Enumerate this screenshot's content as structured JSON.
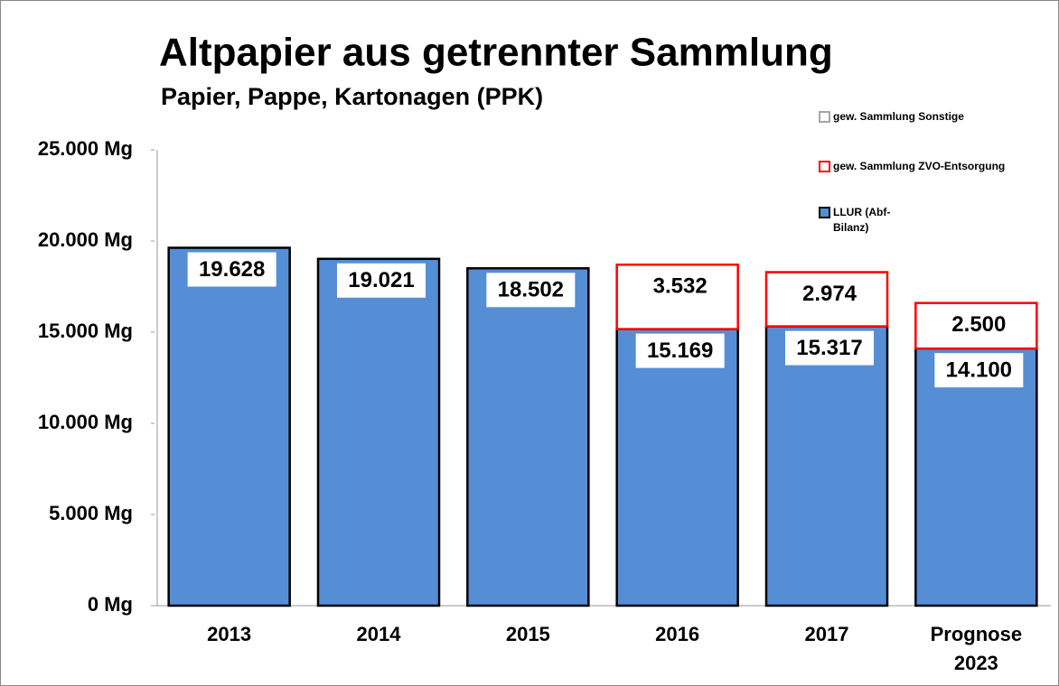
{
  "chart_data": {
    "type": "bar",
    "stacked": true,
    "title": "Altpapier aus getrennter Sammlung",
    "subtitle": "Papier, Pappe, Kartonagen (PPK)",
    "categories": [
      "2013",
      "2014",
      "2015",
      "2016",
      "2017",
      "Prognose 2023"
    ],
    "series": [
      {
        "name": "gew. Sammlung Sonstige",
        "color": "#ffffff",
        "edgecolor": "#a6a6a6",
        "values": [
          null,
          null,
          null,
          null,
          null,
          null
        ]
      },
      {
        "name": "gew. Sammlung ZVO-Entsorgung",
        "color": "#ffffff",
        "edgecolor": "#ff0000",
        "values": [
          null,
          null,
          null,
          3532,
          2974,
          2500
        ],
        "value_labels": [
          null,
          null,
          null,
          "3.532",
          "2.974",
          "2.500"
        ]
      },
      {
        "name": "LLUR (Abf-Bilanz)",
        "color": "#558ed5",
        "edgecolor": "#000000",
        "values": [
          19628,
          19021,
          18502,
          15169,
          15317,
          14100
        ],
        "value_labels": [
          "19.628",
          "19.021",
          "18.502",
          "15.169",
          "15.317",
          "14.100"
        ]
      }
    ],
    "ylim": [
      0,
      25000
    ],
    "yticks": [
      {
        "value": 0,
        "label": "0 Mg"
      },
      {
        "value": 5000,
        "label": "5.000 Mg"
      },
      {
        "value": 10000,
        "label": "10.000 Mg"
      },
      {
        "value": 15000,
        "label": "15.000 Mg"
      },
      {
        "value": 20000,
        "label": "20.000 Mg"
      },
      {
        "value": 25000,
        "label": "25.000 Mg"
      }
    ],
    "grid": false,
    "legend": "upper right"
  }
}
